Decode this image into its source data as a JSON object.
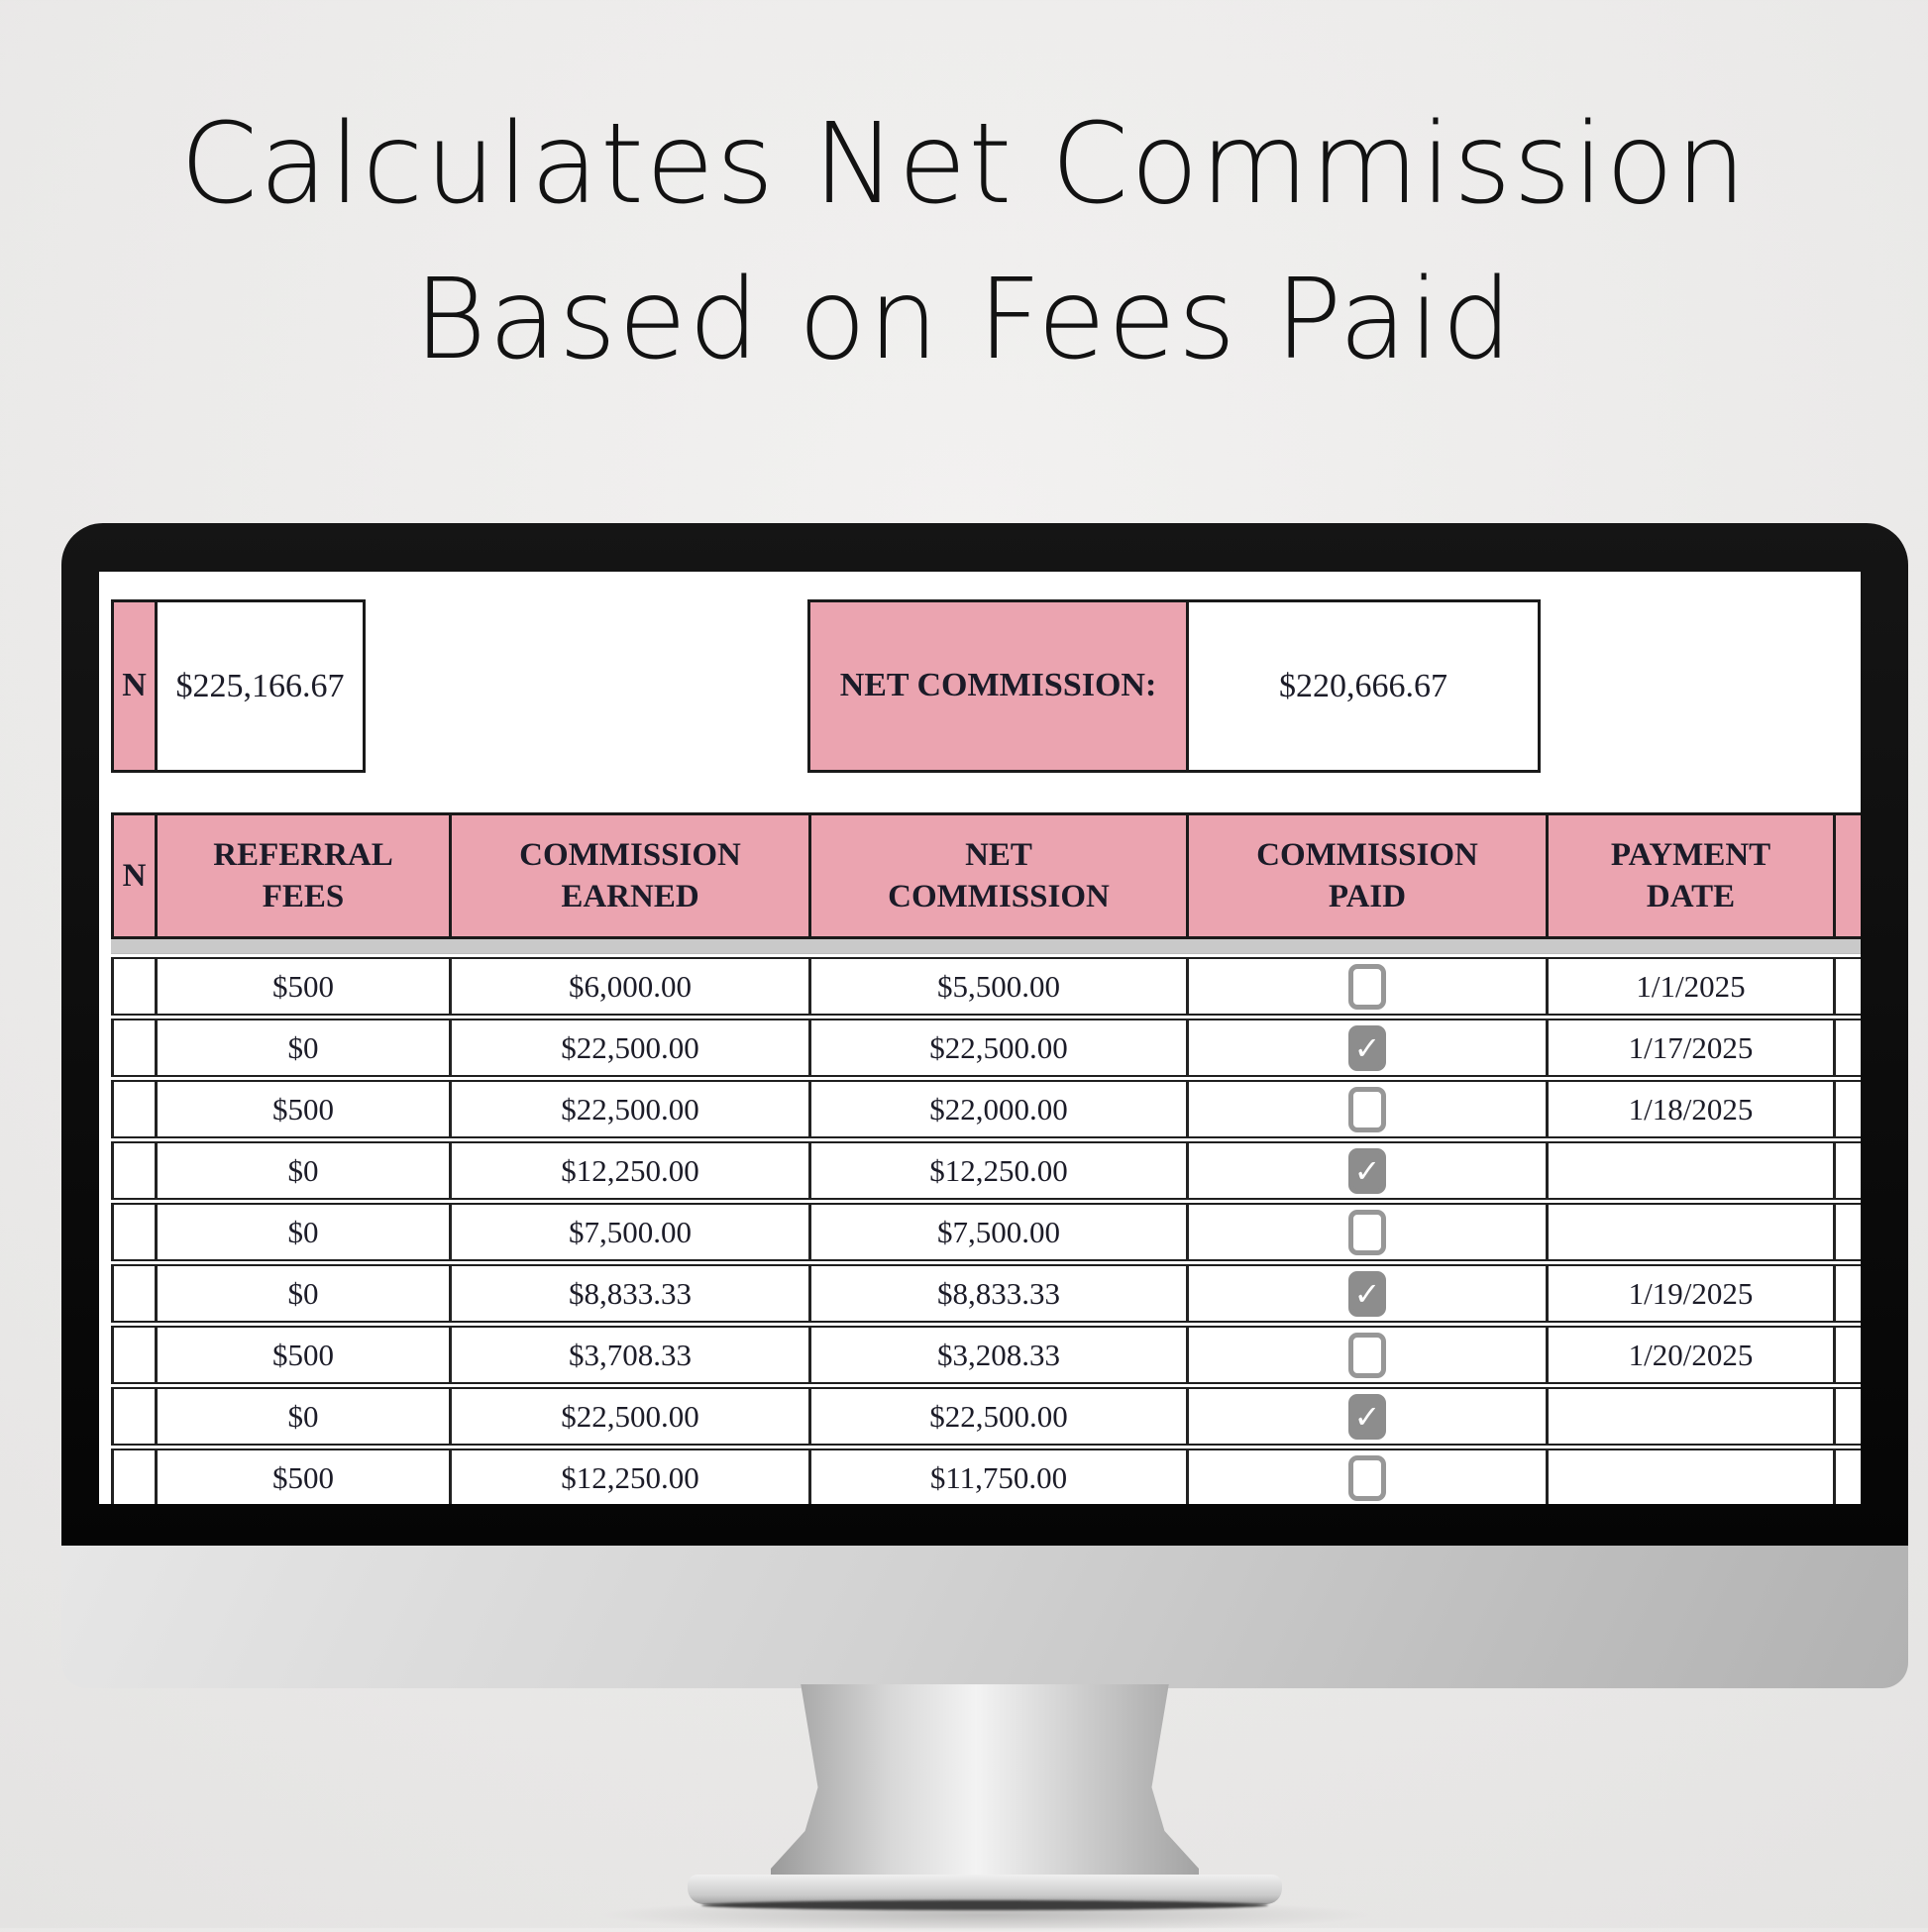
{
  "title": {
    "line1": "Calculates Net Commission",
    "line2": "Based on Fees Paid"
  },
  "summary": {
    "left_partial_label": "N",
    "left_value": "$225,166.67",
    "net_label": "NET COMMISSION:",
    "net_value": "$220,666.67"
  },
  "table": {
    "left_partial_header": "N",
    "columns": [
      "REFERRAL FEES",
      "COMMISSION EARNED",
      "NET COMMISSION",
      "COMMISSION PAID",
      "PAYMENT DATE"
    ],
    "rows": [
      {
        "referral_fees": "$500",
        "commission_earned": "$6,000.00",
        "net_commission": "$5,500.00",
        "commission_paid": false,
        "payment_date": "1/1/2025"
      },
      {
        "referral_fees": "$0",
        "commission_earned": "$22,500.00",
        "net_commission": "$22,500.00",
        "commission_paid": true,
        "payment_date": "1/17/2025"
      },
      {
        "referral_fees": "$500",
        "commission_earned": "$22,500.00",
        "net_commission": "$22,000.00",
        "commission_paid": false,
        "payment_date": "1/18/2025"
      },
      {
        "referral_fees": "$0",
        "commission_earned": "$12,250.00",
        "net_commission": "$12,250.00",
        "commission_paid": true,
        "payment_date": ""
      },
      {
        "referral_fees": "$0",
        "commission_earned": "$7,500.00",
        "net_commission": "$7,500.00",
        "commission_paid": false,
        "payment_date": ""
      },
      {
        "referral_fees": "$0",
        "commission_earned": "$8,833.33",
        "net_commission": "$8,833.33",
        "commission_paid": true,
        "payment_date": "1/19/2025"
      },
      {
        "referral_fees": "$500",
        "commission_earned": "$3,708.33",
        "net_commission": "$3,208.33",
        "commission_paid": false,
        "payment_date": "1/20/2025"
      },
      {
        "referral_fees": "$0",
        "commission_earned": "$22,500.00",
        "net_commission": "$22,500.00",
        "commission_paid": true,
        "payment_date": ""
      },
      {
        "referral_fees": "$500",
        "commission_earned": "$12,250.00",
        "net_commission": "$11,750.00",
        "commission_paid": false,
        "payment_date": ""
      }
    ]
  },
  "icons": {
    "checkmark": "✓"
  },
  "colors": {
    "header_pink": "#eba4b0",
    "border_dark": "#1a1a1a",
    "checkbox_gray": "#8d8d8d"
  }
}
